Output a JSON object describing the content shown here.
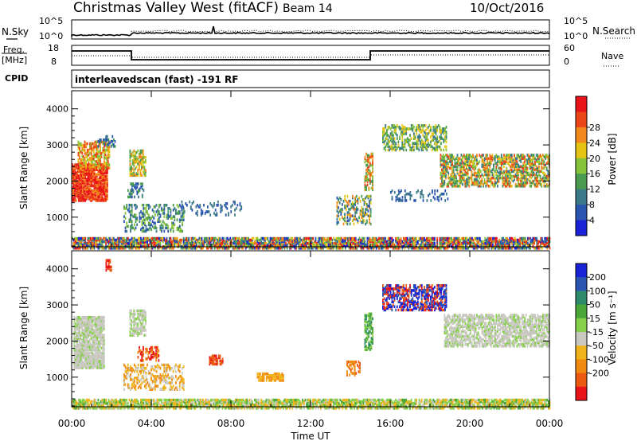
{
  "header": {
    "title": "Christmas Valley West (fitACF)",
    "beam": "Beam 14",
    "date": "10/Oct/2016"
  },
  "strips": {
    "nsky_label": "N.Sky",
    "nsearch_label": "N.Search",
    "freq_label_1": "Freq.",
    "freq_label_2": "[MHz]",
    "nave_label": "Nave",
    "cpid_label": "CPID",
    "cpid_text": "interleavedscan (fast) -191 RF",
    "noise_ticks_left": [
      "10^5",
      "10^0"
    ],
    "noise_ticks_right": [
      "10^5",
      "10^0"
    ],
    "freq_ticks_left": [
      "18",
      "8"
    ],
    "freq_ticks_right": [
      "60",
      "0"
    ]
  },
  "chart_data": [
    {
      "type": "heatmap",
      "name": "power",
      "ylabel": "Slant Range [km]",
      "yticks": [
        "1000",
        "2000",
        "3000",
        "4000"
      ],
      "ylim": [
        180,
        4500
      ],
      "colorbar_label": "Power [dB]",
      "colorbar_ticks": [
        "4",
        "8",
        "12",
        "16",
        "20",
        "24",
        "28"
      ],
      "colors": [
        "#1a22d6",
        "#2a56b0",
        "#3c7a8a",
        "#4a9a50",
        "#86c33a",
        "#e6c414",
        "#f2891c",
        "#ec4618",
        "#e8141a"
      ]
    },
    {
      "type": "heatmap",
      "name": "velocity",
      "ylabel": "Slant Range [km]",
      "yticks": [
        "1000",
        "2000",
        "3000",
        "4000"
      ],
      "ylim": [
        180,
        4500
      ],
      "xlabel": "Time UT",
      "xticks": [
        "00:00",
        "04:00",
        "08:00",
        "12:00",
        "16:00",
        "20:00",
        "00:00"
      ],
      "colorbar_label": "Velocity [m s⁻¹]",
      "colorbar_ticks": [
        "200",
        "100",
        "50",
        "15",
        "-15",
        "-50",
        "-100",
        "-200"
      ],
      "colors": [
        "#1a22d6",
        "#2a56b0",
        "#2d8a6a",
        "#4aa83a",
        "#86d04a",
        "#c8c8c0",
        "#f0b41a",
        "#f08a10",
        "#ec5a12",
        "#e8141a"
      ]
    }
  ]
}
